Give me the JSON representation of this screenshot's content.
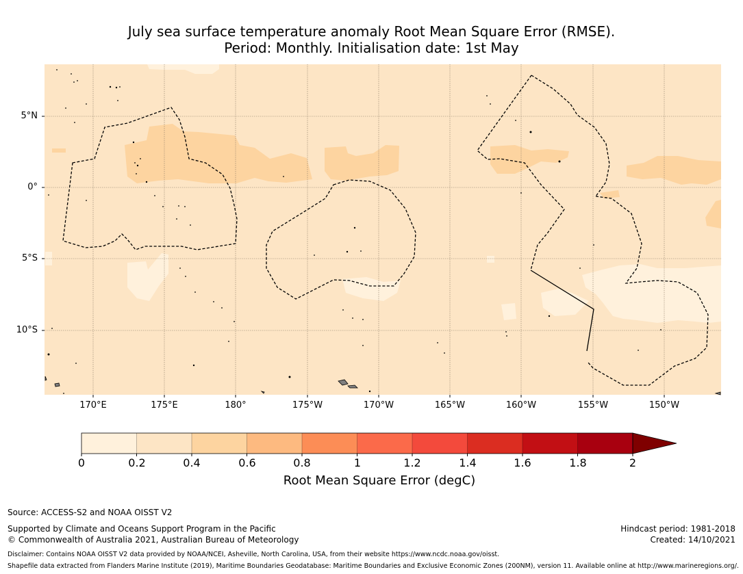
{
  "title": {
    "line1": "July sea surface temperature anomaly Root Mean Square Error (RMSE).",
    "line2": "Period: Monthly. Initialisation date: 1st May"
  },
  "map": {
    "lat_labels": [
      "5°N",
      "0°",
      "5°S",
      "10°S"
    ],
    "lon_labels": [
      "170°E",
      "175°E",
      "180°",
      "175°W",
      "170°W",
      "165°W",
      "160°W",
      "155°W",
      "150°W"
    ],
    "colors": {
      "ocean_base": "#fde5c5",
      "band_light": "#fff1dc",
      "band_mid": "#fdd4a0",
      "land": "#808080",
      "grid": "#8a7a66",
      "boundary": "#000000"
    }
  },
  "colorbar": {
    "ticks": [
      "0",
      "0.2",
      "0.4",
      "0.6",
      "0.8",
      "1",
      "1.2",
      "1.4",
      "1.6",
      "1.8",
      "2"
    ],
    "colors": [
      "#fff1dc",
      "#fde5c5",
      "#fdd4a0",
      "#fdba80",
      "#fc8d56",
      "#fb6a4a",
      "#f34a3c",
      "#db2d21",
      "#c20f14",
      "#a8000f",
      "#7f0000"
    ],
    "label": "Root Mean Square Error (degC)"
  },
  "footer": {
    "source": "Source: ACCESS-S2 and NOAA OISST V2",
    "supported": "Supported by Climate and Oceans Support Program in the Pacific",
    "copyright": "© Commonwealth of Australia 2021, Australian Bureau of Meteorology",
    "hindcast": "Hindcast period: 1981-2018",
    "created": "Created: 14/10/2021",
    "disclaimer": "Disclaimer: Contains NOAA OISST V2 data provided by NOAA/NCEI, Asheville, North Carolina, USA, from their website https://www.ncdc.noaa.gov/oisst.",
    "shapefile": "Shapefile data extracted from Flanders Marine Institute (2019), Maritime Boundaries Geodatabase: Maritime Boundaries and Exclusive Economic Zones (200NM), version 11. Available online at http://www.marineregions.org/."
  }
}
